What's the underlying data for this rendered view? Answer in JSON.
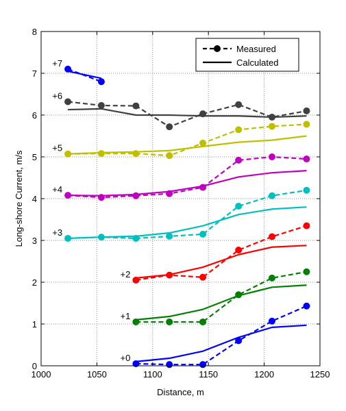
{
  "chart_data": {
    "type": "line",
    "xlabel": "Distance, m",
    "ylabel": "Long-shore Current, m/s",
    "xlim": [
      1000,
      1250
    ],
    "ylim": [
      0,
      8
    ],
    "xticks": [
      1000,
      1050,
      1100,
      1150,
      1200,
      1250
    ],
    "yticks": [
      0,
      1,
      2,
      3,
      4,
      5,
      6,
      7,
      8
    ],
    "grid": true,
    "legend": {
      "placement": "top-right",
      "entries": [
        {
          "label": "Measured",
          "style": "dashed-marker",
          "color": "#000000"
        },
        {
          "label": "Calculated",
          "style": "solid",
          "color": "#000000"
        }
      ]
    },
    "series": [
      {
        "offset_label": "+0",
        "color": "#0000ff",
        "measured": {
          "x": [
            1085,
            1115,
            1145,
            1177,
            1207,
            1238
          ],
          "y": [
            0.05,
            0.03,
            0.03,
            0.6,
            1.07,
            1.43
          ]
        },
        "calculated": {
          "x": [
            1085,
            1115,
            1145,
            1177,
            1207,
            1238
          ],
          "y": [
            0.1,
            0.18,
            0.35,
            0.68,
            0.92,
            0.97
          ]
        }
      },
      {
        "offset_label": "+1",
        "color": "#008000",
        "measured": {
          "x": [
            1085,
            1115,
            1145,
            1177,
            1207,
            1238
          ],
          "y": [
            1.05,
            1.05,
            1.05,
            1.7,
            2.1,
            2.25
          ]
        },
        "calculated": {
          "x": [
            1085,
            1115,
            1145,
            1177,
            1207,
            1238
          ],
          "y": [
            1.1,
            1.18,
            1.35,
            1.68,
            1.88,
            1.93
          ]
        }
      },
      {
        "offset_label": "+2",
        "color": "#ff0000",
        "measured": {
          "x": [
            1085,
            1115,
            1145,
            1177,
            1207,
            1238
          ],
          "y": [
            2.05,
            2.17,
            2.12,
            2.77,
            3.09,
            3.35
          ]
        },
        "calculated": {
          "x": [
            1085,
            1115,
            1145,
            1177,
            1207,
            1238
          ],
          "y": [
            2.1,
            2.18,
            2.36,
            2.66,
            2.84,
            2.88
          ]
        }
      },
      {
        "offset_label": "+3",
        "color": "#00bfbf",
        "measured": {
          "x": [
            1024,
            1054,
            1085,
            1115,
            1145,
            1177,
            1207,
            1238
          ],
          "y": [
            3.05,
            3.08,
            3.05,
            3.1,
            3.15,
            3.82,
            4.07,
            4.2
          ]
        },
        "calculated": {
          "x": [
            1024,
            1054,
            1085,
            1115,
            1145,
            1177,
            1207,
            1238
          ],
          "y": [
            3.05,
            3.08,
            3.1,
            3.18,
            3.35,
            3.62,
            3.75,
            3.8
          ]
        }
      },
      {
        "offset_label": "+4",
        "color": "#bf00bf",
        "measured": {
          "x": [
            1024,
            1054,
            1085,
            1115,
            1145,
            1177,
            1207,
            1238
          ],
          "y": [
            4.08,
            4.03,
            4.07,
            4.12,
            4.27,
            4.92,
            5.0,
            4.95
          ]
        },
        "calculated": {
          "x": [
            1024,
            1054,
            1085,
            1115,
            1145,
            1177,
            1207,
            1238
          ],
          "y": [
            4.08,
            4.07,
            4.1,
            4.17,
            4.3,
            4.52,
            4.62,
            4.67
          ]
        }
      },
      {
        "offset_label": "+5",
        "color": "#bfbf00",
        "measured": {
          "x": [
            1024,
            1054,
            1085,
            1115,
            1145,
            1177,
            1207,
            1238
          ],
          "y": [
            5.07,
            5.08,
            5.08,
            5.03,
            5.33,
            5.65,
            5.73,
            5.78
          ]
        },
        "calculated": {
          "x": [
            1024,
            1054,
            1085,
            1115,
            1145,
            1177,
            1207,
            1238
          ],
          "y": [
            5.07,
            5.1,
            5.12,
            5.15,
            5.25,
            5.35,
            5.4,
            5.5
          ]
        }
      },
      {
        "offset_label": "+6",
        "color": "#404040",
        "measured": {
          "x": [
            1024,
            1054,
            1085,
            1115,
            1145,
            1177,
            1207,
            1238
          ],
          "y": [
            6.32,
            6.23,
            6.22,
            5.72,
            6.03,
            6.25,
            5.95,
            6.1
          ]
        },
        "calculated": {
          "x": [
            1024,
            1054,
            1085,
            1115,
            1145,
            1177,
            1207,
            1238
          ],
          "y": [
            6.13,
            6.15,
            6.0,
            6.0,
            5.98,
            5.98,
            5.95,
            5.98
          ]
        }
      },
      {
        "offset_label": "+7",
        "color": "#0000ff",
        "measured": {
          "x": [
            1024,
            1054
          ],
          "y": [
            7.1,
            6.8
          ]
        },
        "calculated": {
          "x": [
            1024,
            1054
          ],
          "y": [
            7.05,
            6.88
          ]
        }
      }
    ]
  }
}
